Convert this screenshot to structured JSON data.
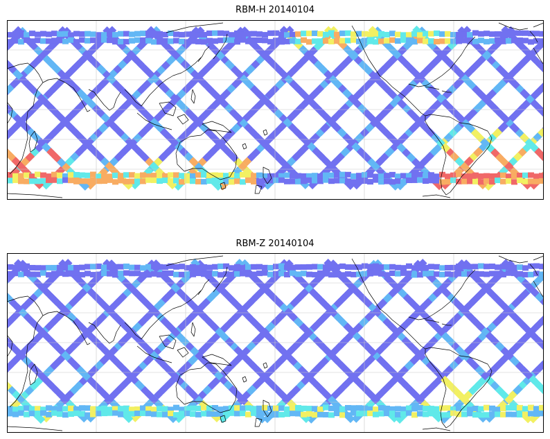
{
  "figure": {
    "panels": [
      {
        "title": "RBM-H 20140104",
        "variant": "H"
      },
      {
        "title": "RBM-Z 20140104",
        "variant": "Z"
      }
    ]
  },
  "colors": {
    "base_swath": "#6a6af0",
    "swath_light": "#5ab4f5",
    "cyan": "#58e8e8",
    "yellow": "#f2f05a",
    "orange": "#f8a85a",
    "red": "#f06060",
    "coast": "#000000",
    "grid": "#c8c8c8"
  },
  "map": {
    "projection": "cylindrical",
    "coastlines": true,
    "grid": true
  }
}
